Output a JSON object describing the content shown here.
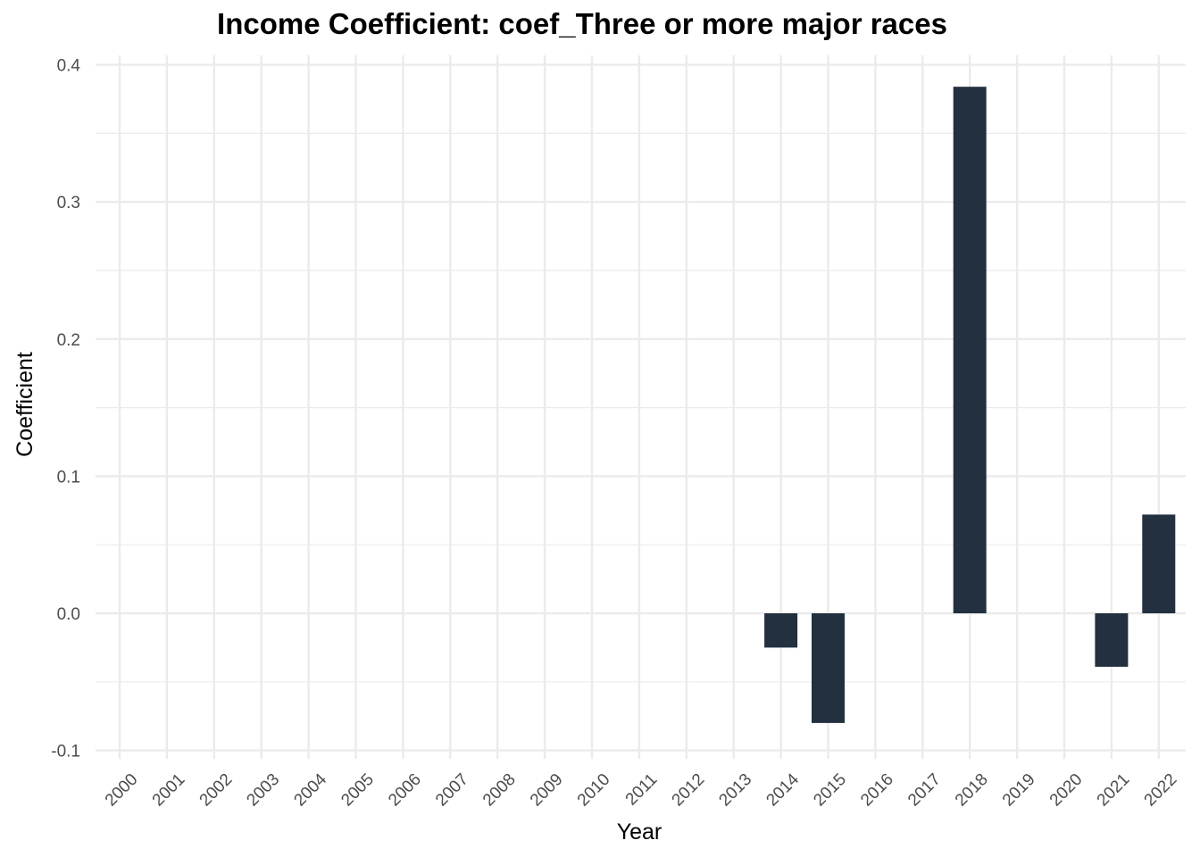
{
  "chart_data": {
    "type": "bar",
    "title": "Income Coefficient: coef_Three or more major races",
    "xlabel": "Year",
    "ylabel": "Coefficient",
    "categories": [
      "2000",
      "2001",
      "2002",
      "2003",
      "2004",
      "2005",
      "2006",
      "2007",
      "2008",
      "2009",
      "2010",
      "2011",
      "2012",
      "2013",
      "2014",
      "2015",
      "2016",
      "2017",
      "2018",
      "2019",
      "2020",
      "2021",
      "2022"
    ],
    "values": [
      null,
      null,
      null,
      null,
      null,
      null,
      null,
      null,
      null,
      null,
      null,
      null,
      null,
      null,
      -0.025,
      -0.08,
      null,
      null,
      0.384,
      null,
      null,
      -0.039,
      0.072
    ],
    "ylim": [
      -0.1,
      0.4
    ],
    "yticks": [
      -0.1,
      0.0,
      0.1,
      0.2,
      0.3,
      0.4
    ],
    "ytick_labels": [
      "-0.1",
      "0.0",
      "0.1",
      "0.2",
      "0.3",
      "0.4"
    ],
    "grid": true,
    "bar_color": "#223040",
    "grid_color": "#ebebeb"
  }
}
